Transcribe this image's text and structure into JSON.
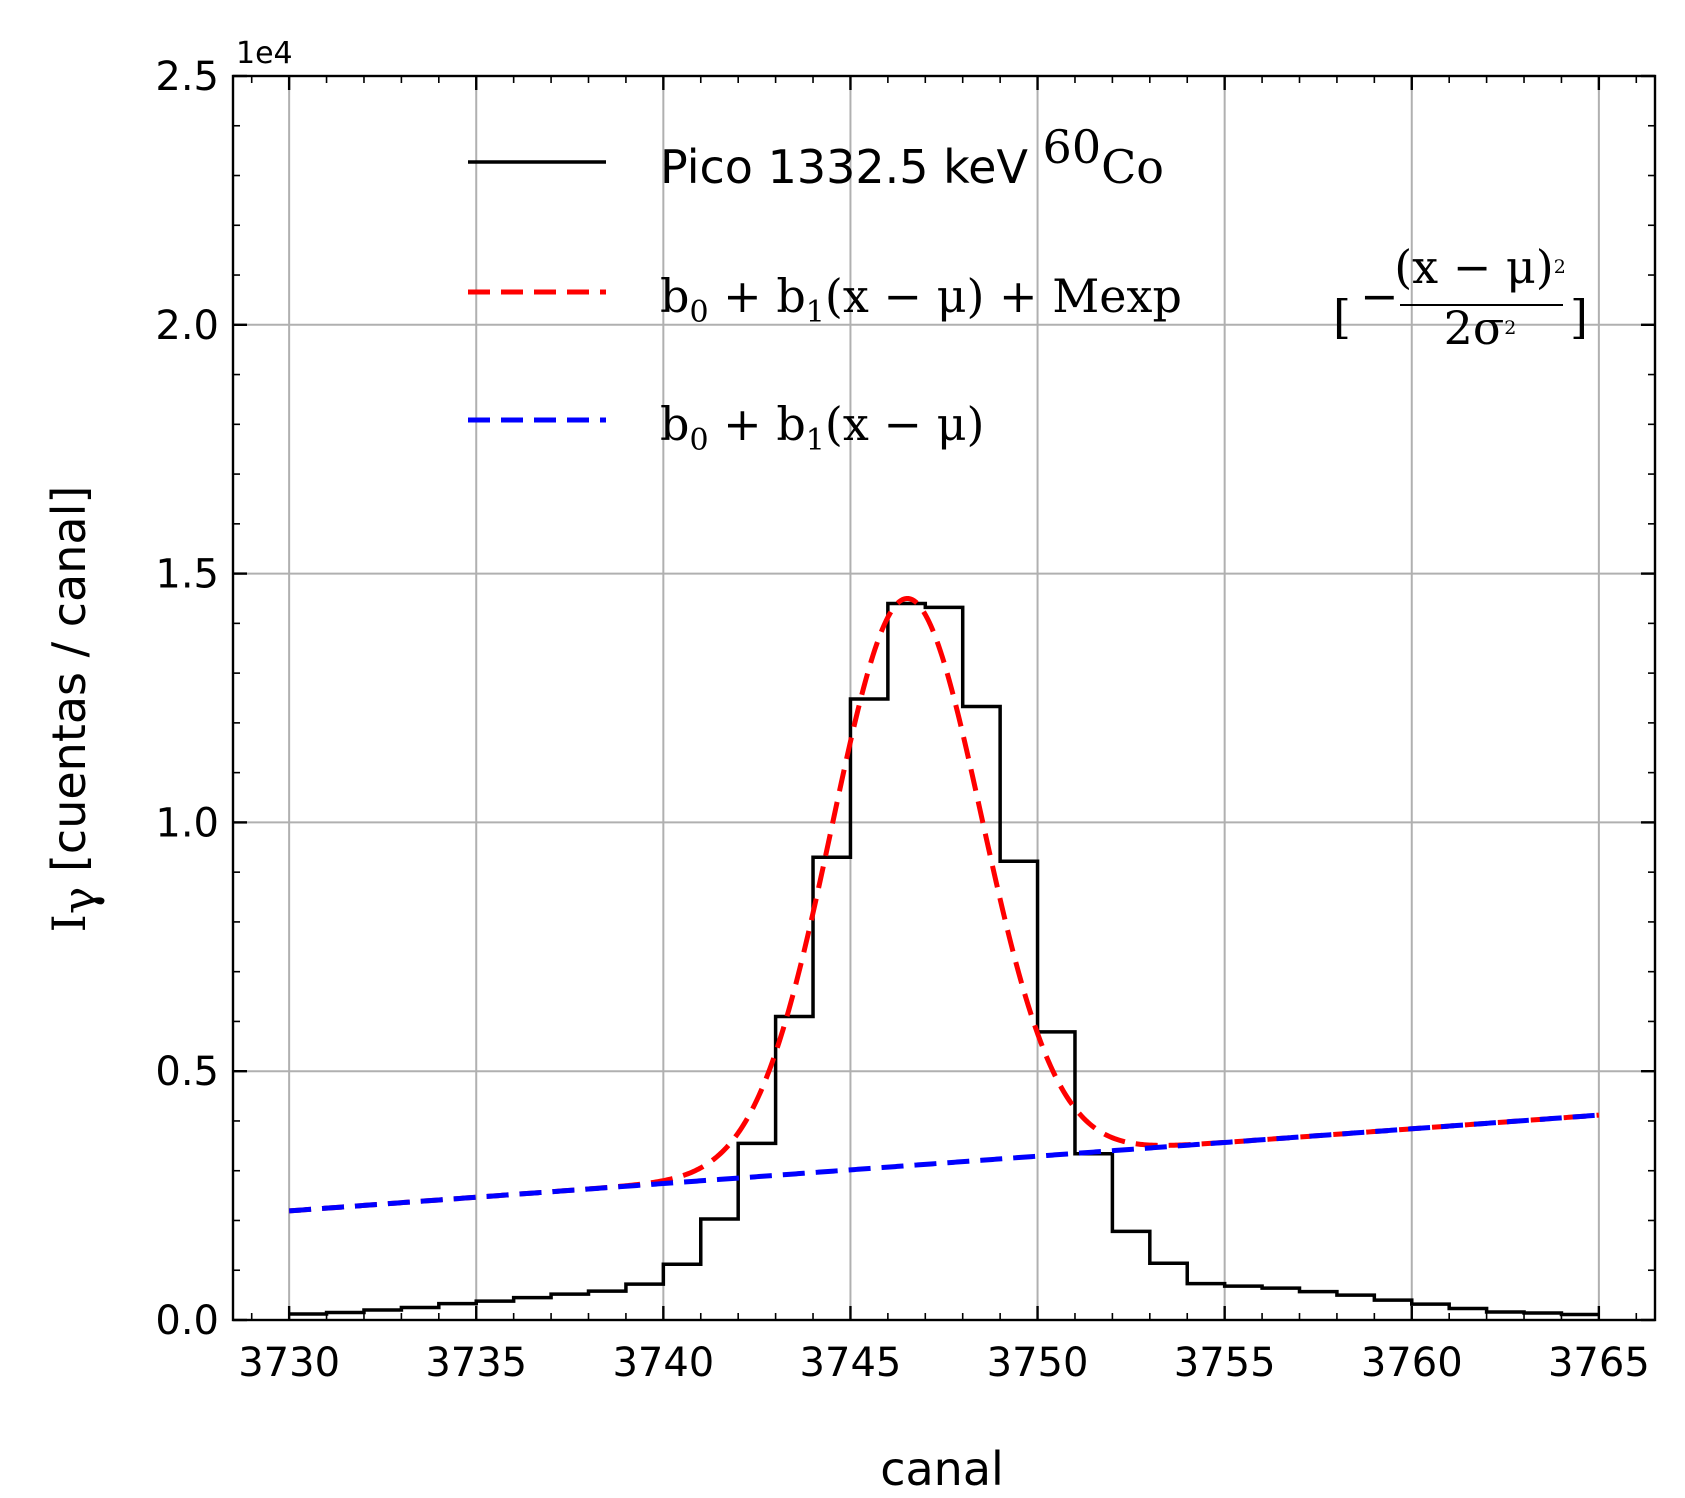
{
  "chart_data": {
    "type": "line",
    "xlabel": "canal",
    "ylabel_main": "I",
    "ylabel_sub": "γ",
    "ylabel_rest": " [cuentas / canal]",
    "y_offset_label": "1e4",
    "xlim": [
      3728.5,
      3766.5
    ],
    "ylim": [
      0,
      25000
    ],
    "x_ticks": [
      3730,
      3735,
      3740,
      3745,
      3750,
      3755,
      3760,
      3765
    ],
    "y_ticks": [
      0,
      5000,
      10000,
      15000,
      20000,
      25000
    ],
    "y_tick_labels": [
      "0.0",
      "0.5",
      "1.0",
      "1.5",
      "2.0",
      "2.5"
    ],
    "grid": true,
    "legend_position": "upper-center",
    "series": [
      {
        "name": "Pico 1332.5 keV ⁶⁰Co",
        "style": "step",
        "color": "#000000",
        "x": [
          3730,
          3731,
          3732,
          3733,
          3734,
          3735,
          3736,
          3737,
          3738,
          3739,
          3740,
          3741,
          3742,
          3743,
          3744,
          3745,
          3746,
          3747,
          3748,
          3749,
          3750,
          3751,
          3752,
          3753,
          3754,
          3755,
          3756,
          3757,
          3758,
          3759,
          3760,
          3761,
          3762,
          3763,
          3764
        ],
        "y": [
          120,
          150,
          200,
          250,
          330,
          380,
          450,
          520,
          580,
          720,
          1120,
          2030,
          3550,
          6100,
          9300,
          12480,
          14400,
          14320,
          12330,
          9220,
          5790,
          3340,
          1780,
          1140,
          730,
          680,
          640,
          570,
          500,
          400,
          320,
          230,
          160,
          140,
          110
        ]
      },
      {
        "name": "b₀ + b₁(x − μ) + Mexp[−(x − μ)²/2σ²]",
        "style": "dashed",
        "color": "#ff0000",
        "b0": 3100,
        "b1": 55,
        "M": 11400,
        "mu": 3746.5,
        "sigma": 2.0,
        "x_range": [
          3730,
          3765
        ]
      },
      {
        "name": "b₀ + b₁(x − μ)",
        "style": "dashed",
        "color": "#0000ff",
        "b0": 3100,
        "b1": 55,
        "mu": 3746.5,
        "x_range": [
          3730,
          3765
        ]
      }
    ]
  },
  "legend": {
    "entry1": {
      "text": "Pico 1332.5 keV ",
      "iso_mass": "60",
      "iso_elem": "Co"
    },
    "entry2": {
      "b": "b",
      "s0": "0",
      "plus": " + ",
      "s1": "1",
      "mid": "(x − μ) + Mexp",
      "lb": "[",
      "minus": "−",
      "num": "(x − μ)",
      "num_exp": "2",
      "den": "2σ",
      "den_exp": "2",
      "rb": "]"
    },
    "entry3": {
      "b": "b",
      "s0": "0",
      "plus": " + ",
      "s1": "1",
      "mid": "(x − μ)"
    }
  }
}
